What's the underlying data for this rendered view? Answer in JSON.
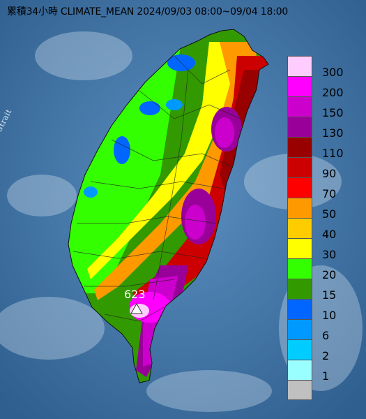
{
  "title": "累積34小時 CLIMATE_MEAN 2024/09/03 08:00~09/04 18:00",
  "strait_label": "Formosa Strait",
  "max_value_label": "623",
  "legend": {
    "items": [
      {
        "label": "300",
        "color": "#ffccff"
      },
      {
        "label": "200",
        "color": "#ff00ff"
      },
      {
        "label": "150",
        "color": "#cc00cc"
      },
      {
        "label": "130",
        "color": "#990099"
      },
      {
        "label": "110",
        "color": "#990000"
      },
      {
        "label": "90",
        "color": "#cc0000"
      },
      {
        "label": "70",
        "color": "#ff0000"
      },
      {
        "label": "50",
        "color": "#ff9900"
      },
      {
        "label": "40",
        "color": "#ffcc00"
      },
      {
        "label": "30",
        "color": "#ffff00"
      },
      {
        "label": "20",
        "color": "#33ff00"
      },
      {
        "label": "15",
        "color": "#339900"
      },
      {
        "label": "10",
        "color": "#0066ff"
      },
      {
        "label": "6",
        "color": "#0099ff"
      },
      {
        "label": "2",
        "color": "#00ccff"
      },
      {
        "label": "1",
        "color": "#99ffff"
      },
      {
        "label": "",
        "color": "#c0c0c0"
      }
    ]
  },
  "colors": {
    "sea": "#3a6f9f",
    "land_low": "#339900",
    "land_green": "#33ff00",
    "yellow": "#ffff00",
    "orange": "#ff9900",
    "red": "#cc0000",
    "darkred": "#990000",
    "purple": "#990099",
    "magenta": "#cc00cc"
  }
}
